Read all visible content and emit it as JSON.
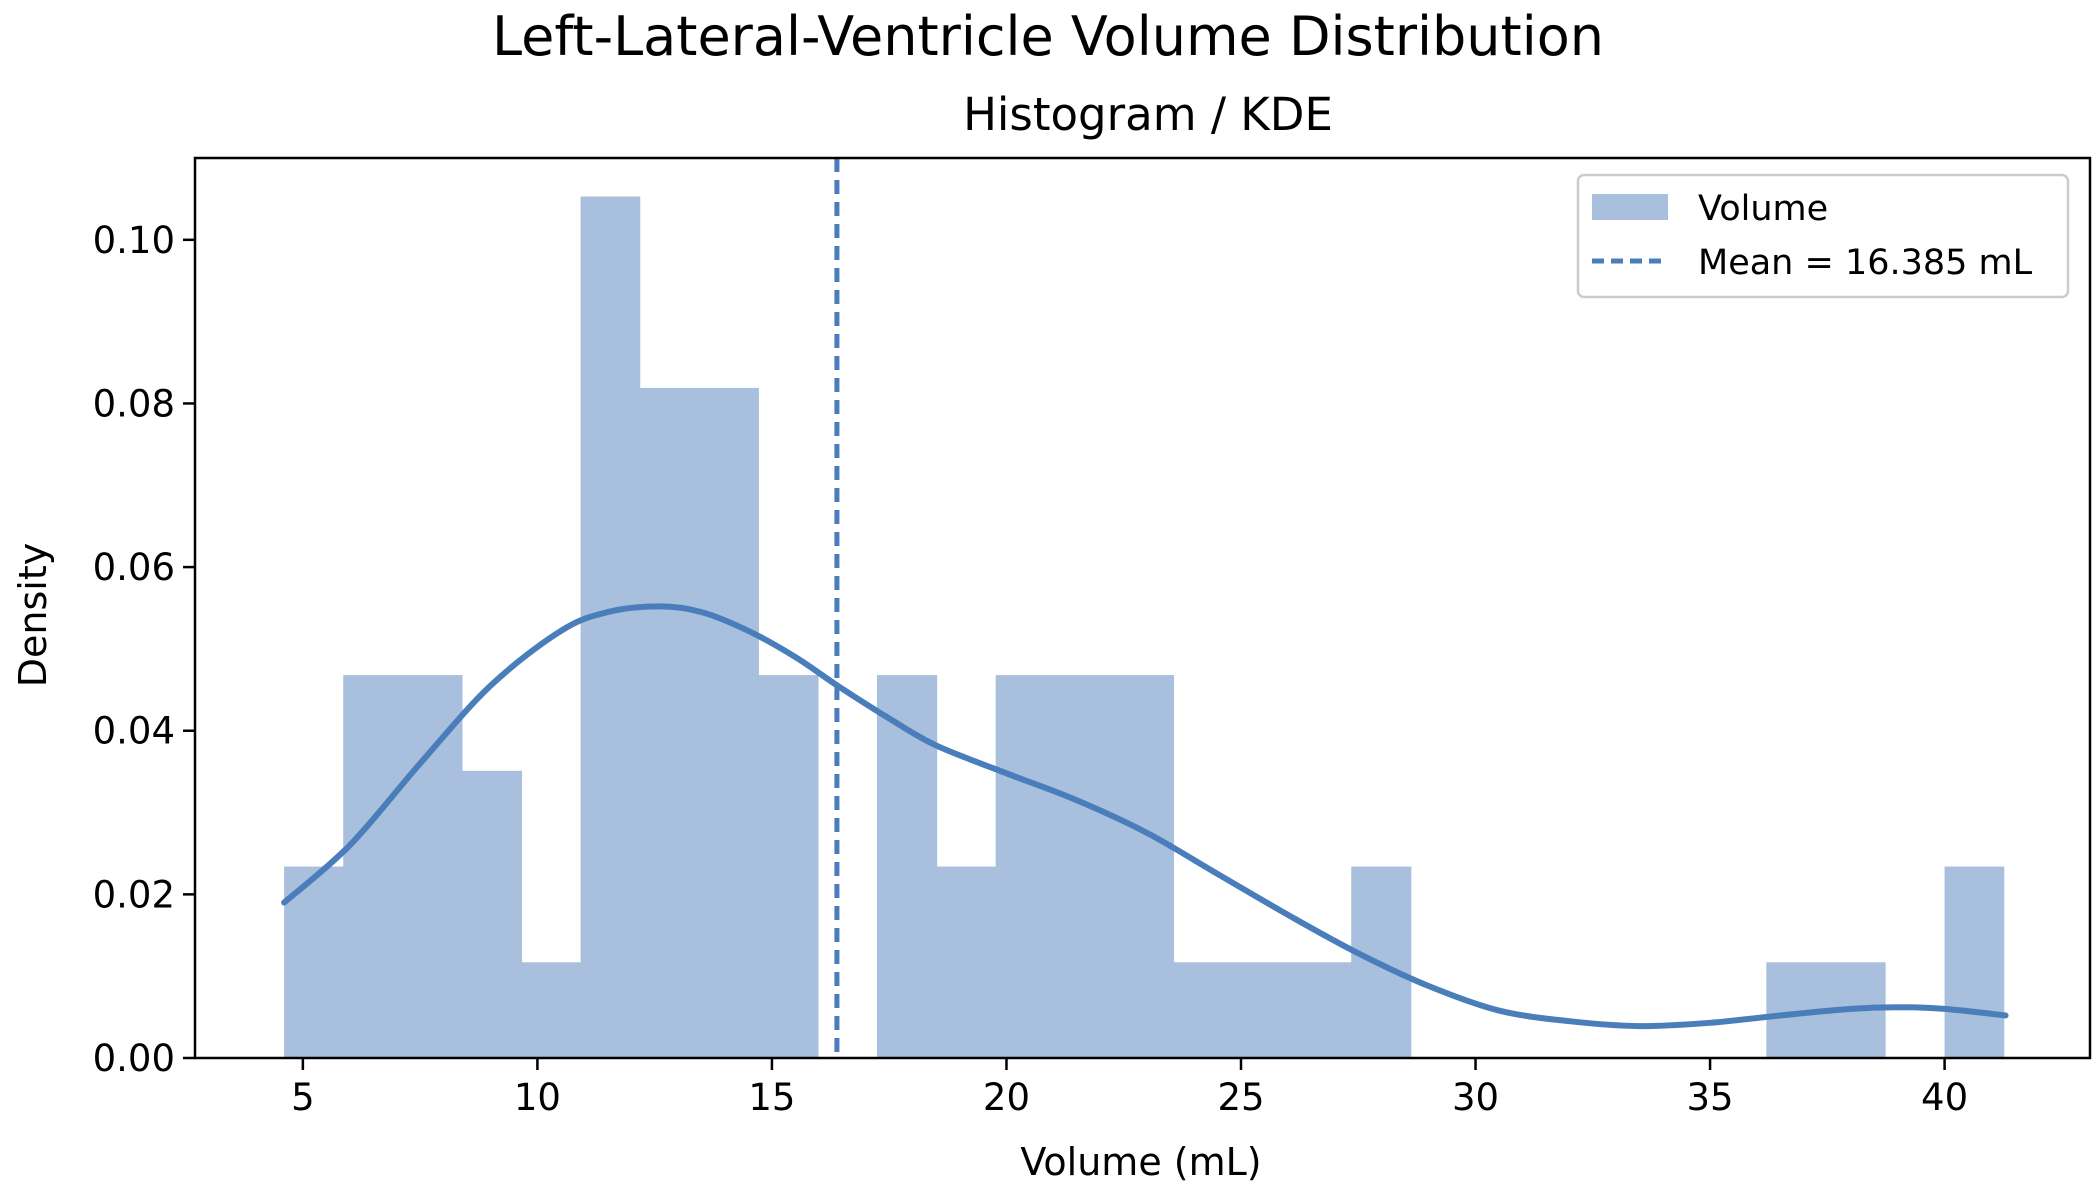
{
  "chart_data": {
    "type": "bar",
    "title": "Left-Lateral-Ventricle Volume Distribution",
    "subtitle": "Histogram / KDE",
    "xlabel": "Volume (mL)",
    "ylabel": "Density",
    "xlim": [
      2.7,
      43.1
    ],
    "ylim": [
      0,
      0.11
    ],
    "xticks": [
      5,
      10,
      15,
      20,
      25,
      30,
      35,
      40
    ],
    "yticks": [
      0.0,
      0.02,
      0.04,
      0.06,
      0.08,
      0.1
    ],
    "ytick_labels": [
      "0.00",
      "0.02",
      "0.04",
      "0.06",
      "0.08",
      "0.10"
    ],
    "grid": false,
    "legend_position": "top-right",
    "bar_color": "#a8bfdd",
    "line_color": "#4a7ebb",
    "histogram": {
      "name": "Volume",
      "bin_edges": [
        4.6,
        5.86,
        7.13,
        8.39,
        9.66,
        10.92,
        12.18,
        13.45,
        14.71,
        15.98,
        17.24,
        18.51,
        19.77,
        21.03,
        22.3,
        23.56,
        24.83,
        26.09,
        27.35,
        28.62,
        29.88,
        31.15,
        32.41,
        33.68,
        34.94,
        36.2,
        37.47,
        38.73,
        40.0,
        41.26
      ],
      "densities": [
        0.0234,
        0.0468,
        0.0468,
        0.0351,
        0.0117,
        0.1053,
        0.0819,
        0.0819,
        0.0468,
        0.0,
        0.0468,
        0.0234,
        0.0468,
        0.0468,
        0.0468,
        0.0117,
        0.0117,
        0.0117,
        0.0234,
        0.0,
        0.0,
        0.0,
        0.0,
        0.0,
        0.0,
        0.0117,
        0.0117,
        0.0,
        0.0234
      ]
    },
    "kde": {
      "x": [
        4.6,
        6.0,
        7.5,
        9.0,
        10.5,
        11.5,
        12.6,
        13.5,
        14.5,
        15.5,
        16.4,
        17.5,
        18.5,
        20.0,
        21.5,
        23.0,
        24.5,
        26.0,
        27.5,
        29.0,
        30.5,
        32.0,
        33.5,
        35.0,
        36.5,
        38.0,
        39.0,
        40.0,
        41.3
      ],
      "y": [
        0.019,
        0.026,
        0.036,
        0.0455,
        0.0522,
        0.0545,
        0.0552,
        0.0545,
        0.0522,
        0.049,
        0.0455,
        0.0415,
        0.0382,
        0.0348,
        0.0315,
        0.0275,
        0.0225,
        0.0175,
        0.0128,
        0.0088,
        0.0058,
        0.0045,
        0.0039,
        0.0043,
        0.0052,
        0.006,
        0.0062,
        0.006,
        0.0052
      ]
    },
    "mean_line": {
      "x": 16.385,
      "label": "Mean = 16.385 mL"
    }
  }
}
